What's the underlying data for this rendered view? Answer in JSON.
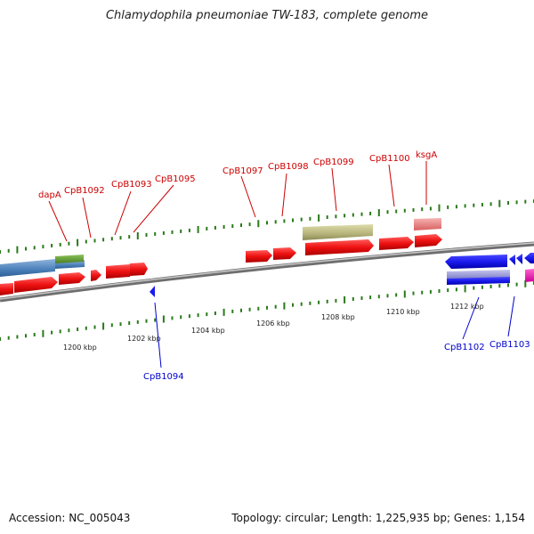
{
  "title": "Chlamydophila pneumoniae TW-183, complete genome",
  "footer": {
    "accession": "Accession: NC_005043",
    "summary": "Topology: circular; Length: 1,225,935 bp; Genes: 1,154"
  },
  "gene_labels_top": [
    "dapA",
    "CpB1092",
    "CpB1093",
    "CpB1095",
    "CpB1097",
    "CpB1098",
    "CpB1099",
    "CpB1100",
    "ksgA"
  ],
  "gene_labels_bottom": [
    "CpB1094",
    "CpB1102",
    "CpB1103"
  ],
  "scale_labels": [
    "1200 kbp",
    "1202 kbp",
    "1204 kbp",
    "1206 kbp",
    "1208 kbp",
    "1210 kbp",
    "1212 kbp"
  ],
  "colors": {
    "forward_cds": "#ee1111",
    "reverse_cds": "#1a1aee",
    "backbone": "#888888",
    "tick": "#2a7a1a",
    "label_top": "#cc0000",
    "label_bottom": "#0000cc"
  }
}
